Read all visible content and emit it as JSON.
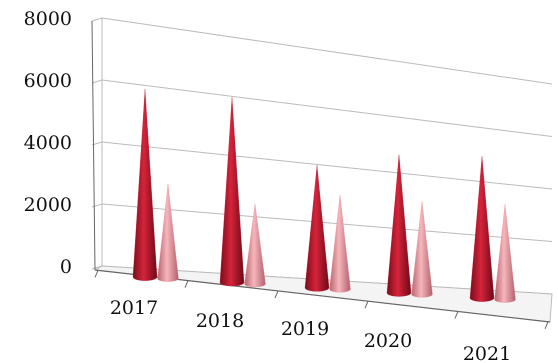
{
  "chart_data": {
    "type": "bar",
    "style": "3d-cone",
    "categories": [
      "2017",
      "2018",
      "2019",
      "2020",
      "2021"
    ],
    "series": [
      {
        "values": [
          6200,
          6300,
          4300,
          5000,
          5300
        ]
      },
      {
        "values": [
          3150,
          2750,
          3350,
          3400,
          3600
        ]
      }
    ],
    "ylim": [
      0,
      8000
    ],
    "yticks": [
      0,
      2000,
      4000,
      6000,
      8000
    ],
    "grid": true,
    "colors": {
      "series1": "#b3142b",
      "series2": "#e88f96",
      "grid": "#bbbbbb",
      "axis": "#666666"
    }
  }
}
